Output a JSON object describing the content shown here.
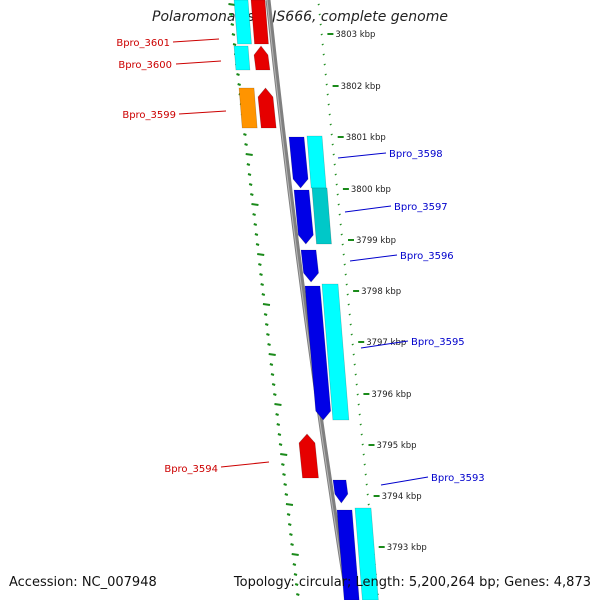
{
  "header": {
    "title": "Polaromonas sp. JS666, complete genome"
  },
  "footer": {
    "accession": "Accession: NC_007948",
    "summary": "Topology: circular; Length: 5,200,264 bp; Genes: 4,873"
  },
  "colors": {
    "backbone": "#808080",
    "ruler": "#1a8a1a",
    "forward_label": "#0000cc",
    "reverse_label": "#cc0000",
    "cds_forward": "#0000e6",
    "cds_reverse": "#e60000",
    "orange_gene": "#ff9400",
    "cyan_gene": "#00ffff",
    "teal_gene": "#00c8c8",
    "tick_text": "#222222"
  },
  "ticks": [
    "3803 kbp",
    "3802 kbp",
    "3801 kbp",
    "3800 kbp",
    "3799 kbp",
    "3798 kbp",
    "3797 kbp",
    "3796 kbp",
    "3795 kbp",
    "3794 kbp",
    "3793 kbp"
  ],
  "genes": {
    "reverse": [
      "Bpro_3601",
      "Bpro_3600",
      "Bpro_3599",
      "Bpro_3594"
    ],
    "forward": [
      "Bpro_3598",
      "Bpro_3597",
      "Bpro_3596",
      "Bpro_3595",
      "Bpro_3593"
    ]
  }
}
